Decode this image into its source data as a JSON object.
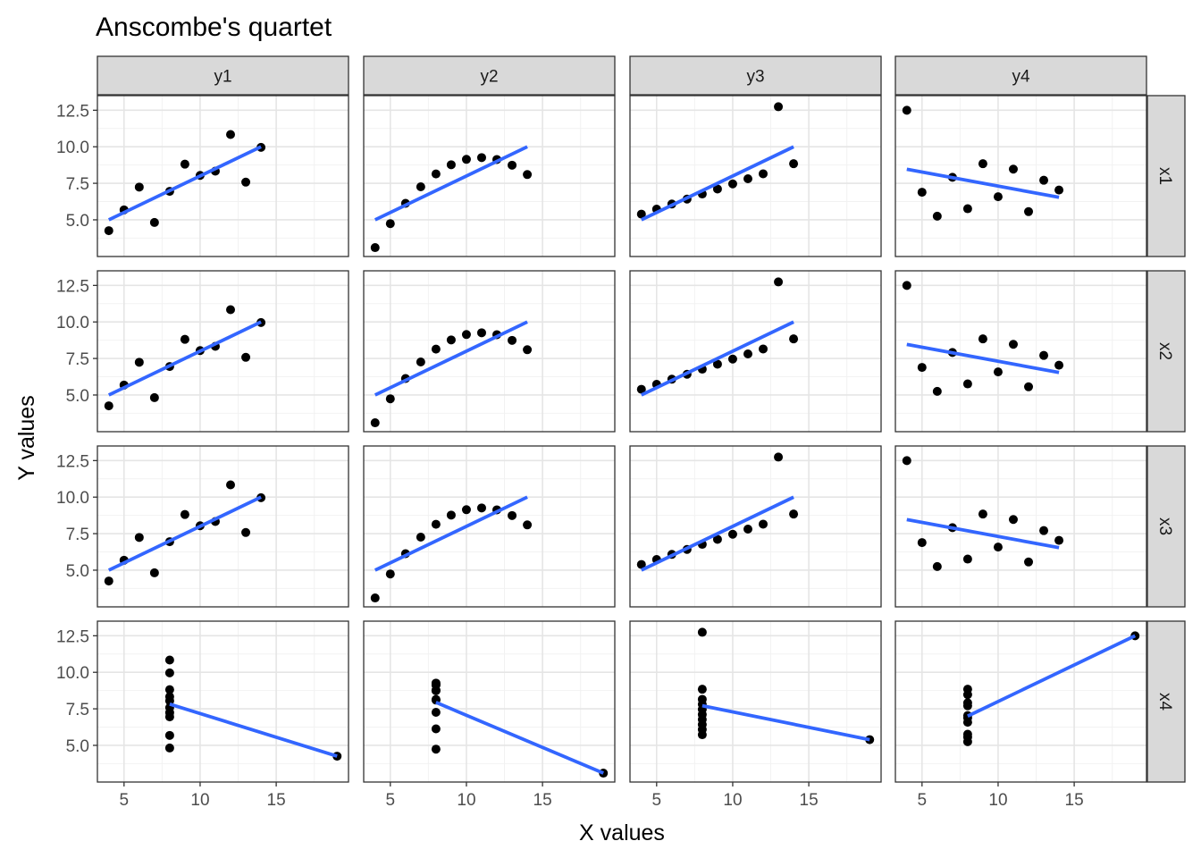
{
  "chart_data": {
    "type": "scatter",
    "title": "Anscombe's quartet",
    "xlabel": "X values",
    "ylabel": "Y values",
    "column_facets": [
      "y1",
      "y2",
      "y3",
      "y4"
    ],
    "row_facets": [
      "x1",
      "x2",
      "x3",
      "x4"
    ],
    "xlim": [
      3.25,
      19.75
    ],
    "ylim": [
      2.49,
      13.5
    ],
    "x_ticks": [
      5,
      10,
      15
    ],
    "x_tick_labels": [
      "5",
      "10",
      "15"
    ],
    "y_ticks": [
      5.0,
      7.5,
      10.0,
      12.5
    ],
    "y_tick_labels": [
      "5.0",
      "7.5",
      "10.0",
      "12.5"
    ],
    "grid": true,
    "point_color": "#000000",
    "line_color": "#3366FF",
    "x_data": {
      "x1": [
        10,
        8,
        13,
        9,
        11,
        14,
        6,
        4,
        12,
        7,
        5
      ],
      "x2": [
        10,
        8,
        13,
        9,
        11,
        14,
        6,
        4,
        12,
        7,
        5
      ],
      "x3": [
        10,
        8,
        13,
        9,
        11,
        14,
        6,
        4,
        12,
        7,
        5
      ],
      "x4": [
        8,
        8,
        8,
        8,
        8,
        8,
        8,
        19,
        8,
        8,
        8
      ]
    },
    "y_data": {
      "y1": [
        8.04,
        6.95,
        7.58,
        8.81,
        8.33,
        9.96,
        7.24,
        4.26,
        10.84,
        4.82,
        5.68
      ],
      "y2": [
        9.14,
        8.14,
        8.74,
        8.77,
        9.26,
        8.1,
        6.13,
        3.1,
        9.13,
        7.26,
        4.74
      ],
      "y3": [
        7.46,
        6.77,
        12.74,
        7.11,
        7.81,
        8.84,
        6.08,
        5.39,
        8.15,
        6.42,
        5.73
      ],
      "y4": [
        6.58,
        5.76,
        7.71,
        8.84,
        8.47,
        7.04,
        5.25,
        12.5,
        5.56,
        7.91,
        6.89
      ]
    }
  }
}
